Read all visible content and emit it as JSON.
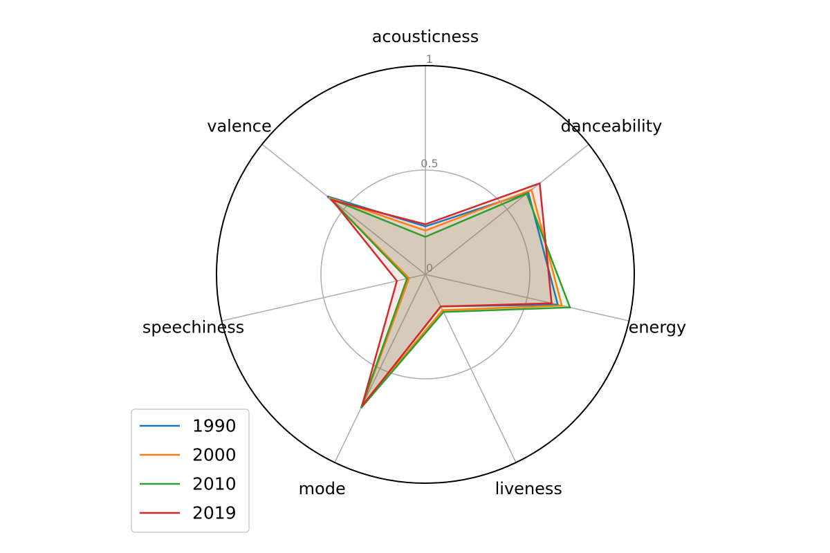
{
  "chart_data": {
    "type": "radar",
    "title": "",
    "axes": [
      "acousticness",
      "danceability",
      "energy",
      "liveness",
      "mode",
      "speechiness",
      "valence"
    ],
    "rlim": [
      0,
      1
    ],
    "rticks": [
      {
        "value": 0,
        "label": "0"
      },
      {
        "value": 0.5,
        "label": "0.5"
      },
      {
        "value": 1,
        "label": "1"
      }
    ],
    "grid": true,
    "legend": {
      "position": "lower-left"
    },
    "series": [
      {
        "name": "1990",
        "color": "#1f77b4",
        "values": [
          0.23,
          0.63,
          0.65,
          0.17,
          0.7,
          0.08,
          0.6
        ]
      },
      {
        "name": "2000",
        "color": "#ff7f0e",
        "values": [
          0.21,
          0.65,
          0.67,
          0.19,
          0.7,
          0.08,
          0.59
        ]
      },
      {
        "name": "2010",
        "color": "#2ca02c",
        "values": [
          0.18,
          0.62,
          0.71,
          0.2,
          0.71,
          0.09,
          0.58
        ]
      },
      {
        "name": "2019",
        "color": "#d62728",
        "values": [
          0.24,
          0.7,
          0.62,
          0.17,
          0.7,
          0.14,
          0.57
        ]
      }
    ]
  }
}
